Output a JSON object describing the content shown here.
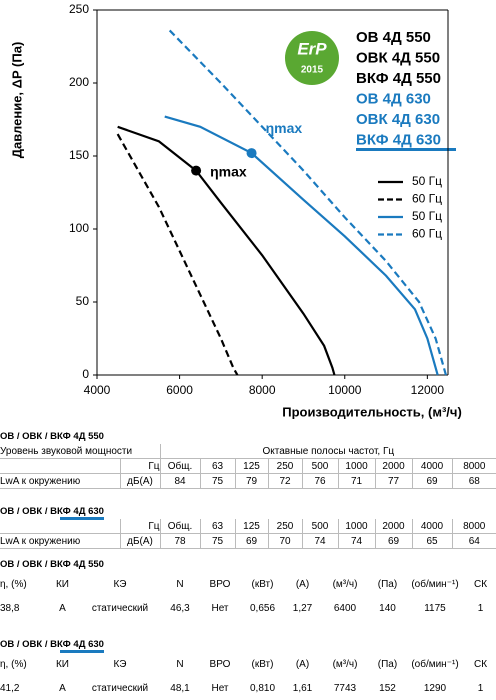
{
  "chart_data": {
    "type": "line",
    "ylabel": "Давление, ΔP (Па)",
    "xlabel": "Производительность, (м³/ч)",
    "xlim": [
      4000,
      12500
    ],
    "xticks": [
      4000,
      6000,
      8000,
      10000,
      12000
    ],
    "ylim": [
      0,
      250
    ],
    "yticks": [
      0,
      50,
      100,
      150,
      200,
      250
    ],
    "grid": false,
    "series": [
      {
        "name": "50 Гц",
        "color": "#000000",
        "dash": false,
        "x": [
          4500,
          5500,
          6400,
          7000,
          8000,
          9000,
          9500,
          9700,
          9750
        ],
        "values": [
          170,
          160,
          140,
          118,
          82,
          42,
          20,
          5,
          0
        ]
      },
      {
        "name": "60 Гц",
        "color": "#000000",
        "dash": true,
        "x": [
          4500,
          5500,
          6500,
          7000,
          7300,
          7400
        ],
        "values": [
          165,
          115,
          55,
          25,
          5,
          0
        ]
      },
      {
        "name": "50 Гц",
        "color": "#1a7abf",
        "dash": false,
        "x": [
          5640,
          6500,
          7743,
          9000,
          10000,
          11000,
          11700,
          12000,
          12200,
          12250
        ],
        "values": [
          177,
          170,
          152,
          120,
          95,
          68,
          45,
          25,
          5,
          0
        ]
      },
      {
        "name": "60 Гц",
        "color": "#1a7abf",
        "dash": true,
        "x": [
          5760,
          7000,
          8000,
          9000,
          10000,
          11000,
          11800,
          12200,
          12400,
          12450
        ],
        "values": [
          236,
          200,
          170,
          140,
          108,
          78,
          50,
          25,
          5,
          0
        ]
      }
    ],
    "annotations": [
      {
        "text": "ηmax",
        "x": 6400,
        "y": 140,
        "color": "#000000"
      },
      {
        "text": "ηmax",
        "x": 7743,
        "y": 152,
        "color": "#1a7abf"
      }
    ],
    "models": [
      {
        "name": "ОВ 4Д 550",
        "color": "#000000"
      },
      {
        "name": "ОВК 4Д 550",
        "color": "#000000"
      },
      {
        "name": "ВКФ 4Д 550",
        "color": "#000000"
      },
      {
        "name": "ОВ 4Д 630",
        "color": "#1a7abf"
      },
      {
        "name": "ОВК 4Д 630",
        "color": "#1a7abf"
      },
      {
        "name": "ВКФ 4Д 630",
        "color": "#1a7abf"
      }
    ],
    "badge": {
      "text": "ErP",
      "year": "2015"
    }
  },
  "tables": [
    {
      "title": "ОВ / ОВК / ВКФ 4Д 550",
      "rows": [
        [
          "Уровень звуковой мощности",
          "Октавные полосы частот, Гц"
        ],
        [
          "",
          "Гц",
          "Общ.",
          "63",
          "125",
          "250",
          "500",
          "1000",
          "2000",
          "4000",
          "8000"
        ],
        [
          "LwA к окружению",
          "дБ(A)",
          "84",
          "75",
          "79",
          "72",
          "76",
          "71",
          "77",
          "69",
          "68"
        ]
      ]
    },
    {
      "title": "ОВ / ОВК / ВКФ 4Д 630",
      "rows": [
        [
          "",
          "Гц",
          "Общ.",
          "63",
          "125",
          "250",
          "500",
          "1000",
          "2000",
          "4000",
          "8000"
        ],
        [
          "LwA к окружению",
          "дБ(A)",
          "78",
          "75",
          "69",
          "70",
          "74",
          "74",
          "69",
          "65",
          "64"
        ]
      ]
    },
    {
      "title": "ОВ / ОВК / ВКФ 4Д 550",
      "rows": [
        [
          "η, (%)",
          "КИ",
          "КЭ",
          "N",
          "ВРО",
          "(кВт)",
          "(A)",
          "(м³/ч)",
          "(Па)",
          "(об/мин⁻¹)",
          "СК"
        ],
        [
          "38,8",
          "A",
          "статический",
          "46,3",
          "Нет",
          "0,656",
          "1,27",
          "6400",
          "140",
          "1175",
          "1"
        ]
      ]
    },
    {
      "title": "ОВ / ОВК / ВКФ 4Д 630",
      "rows": [
        [
          "η, (%)",
          "КИ",
          "КЭ",
          "N",
          "ВРО",
          "(кВт)",
          "(A)",
          "(м³/ч)",
          "(Па)",
          "(об/мин⁻¹)",
          "СК"
        ],
        [
          "41,2",
          "A",
          "статический",
          "48,1",
          "Нет",
          "0,810",
          "1,61",
          "7743",
          "152",
          "1290",
          "1"
        ]
      ]
    }
  ]
}
